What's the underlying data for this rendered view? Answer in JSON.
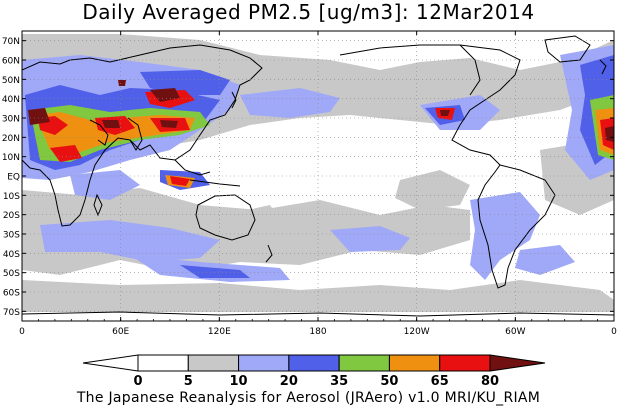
{
  "title": "Daily Averaged PM2.5 [ug/m3]: 12Mar2014",
  "credit": "The Japanese Reanalysis for Aerosol (JRAero) v1.0 MRI/KU_RIAM",
  "map": {
    "projection": "equirectangular",
    "lon_range": [
      0,
      360
    ],
    "lat_range": [
      -75,
      75
    ],
    "lat_labels": [
      "70N",
      "60N",
      "50N",
      "40N",
      "30N",
      "20N",
      "10N",
      "EQ",
      "10S",
      "20S",
      "30S",
      "40S",
      "50S",
      "60S",
      "70S"
    ],
    "lat_values": [
      70,
      60,
      50,
      40,
      30,
      20,
      10,
      0,
      -10,
      -20,
      -30,
      -40,
      -50,
      -60,
      -70
    ],
    "lon_labels": [
      "0",
      "60E",
      "120E",
      "180",
      "120W",
      "60W",
      "0"
    ],
    "lon_values": [
      0,
      60,
      120,
      180,
      240,
      300,
      360
    ],
    "grid": "dotted"
  },
  "colorbar": {
    "levels": [
      "0",
      "5",
      "10",
      "20",
      "35",
      "50",
      "65",
      "80"
    ],
    "colors": [
      "#ffffff",
      "#c8c8c8",
      "#a0a8f8",
      "#5060e8",
      "#80c840",
      "#f09010",
      "#e81010",
      "#701010"
    ]
  }
}
